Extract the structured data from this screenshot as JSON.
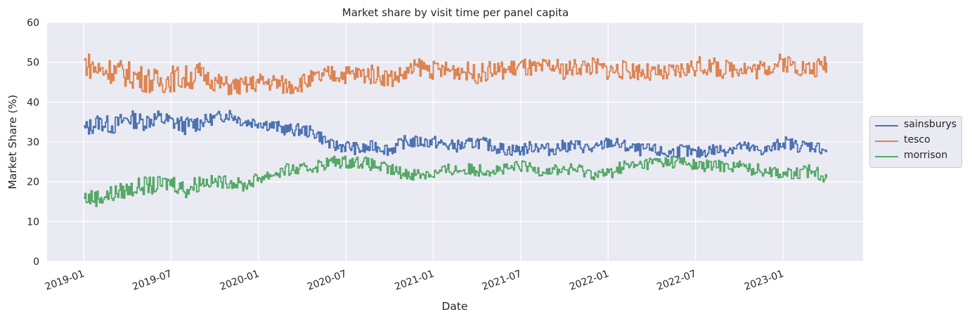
{
  "chart_data": {
    "type": "line",
    "title": "Market share by visit time per panel capita",
    "xlabel": "Date",
    "ylabel": "Market Share (%)",
    "ylim": [
      0,
      60
    ],
    "yticks": [
      0,
      10,
      20,
      30,
      40,
      50,
      60
    ],
    "xticks": [
      "2019-01",
      "2019-07",
      "2020-01",
      "2020-07",
      "2021-01",
      "2021-07",
      "2022-01",
      "2022-07",
      "2023-01"
    ],
    "xrange": [
      "2018-11",
      "2023-08"
    ],
    "grid": true,
    "legend_position": "right-outside",
    "x": [
      "2019-01",
      "2019-02",
      "2019-03",
      "2019-04",
      "2019-05",
      "2019-06",
      "2019-07",
      "2019-08",
      "2019-09",
      "2019-10",
      "2019-11",
      "2019-12",
      "2020-01",
      "2020-02",
      "2020-03",
      "2020-04",
      "2020-05",
      "2020-06",
      "2020-07",
      "2020-08",
      "2020-09",
      "2020-10",
      "2020-11",
      "2020-12",
      "2021-01",
      "2021-02",
      "2021-03",
      "2021-04",
      "2021-05",
      "2021-06",
      "2021-07",
      "2021-08",
      "2021-09",
      "2021-10",
      "2021-11",
      "2021-12",
      "2022-01",
      "2022-02",
      "2022-03",
      "2022-04",
      "2022-05",
      "2022-06",
      "2022-07",
      "2022-08",
      "2022-09",
      "2022-10",
      "2022-11",
      "2022-12",
      "2023-01",
      "2023-02",
      "2023-03",
      "2023-04"
    ],
    "series": [
      {
        "name": "sainsburys",
        "color": "#4c72b0",
        "values": [
          33,
          35,
          34,
          36,
          35,
          36,
          35,
          34,
          35,
          36,
          37,
          35,
          35,
          34,
          33,
          33,
          32,
          29,
          29,
          28,
          29,
          28,
          30,
          30,
          30,
          29,
          29,
          30,
          29,
          28,
          28,
          29,
          28,
          29,
          29,
          28,
          30,
          29,
          28,
          28,
          27,
          28,
          27,
          28,
          28,
          29,
          28,
          28,
          30,
          29,
          29,
          28
        ]
      },
      {
        "name": "tesco",
        "color": "#dd8452",
        "values": [
          50,
          48,
          48,
          47,
          46,
          45,
          46,
          46,
          47,
          45,
          44,
          44,
          45,
          45,
          44,
          45,
          46,
          47,
          47,
          47,
          47,
          46,
          47,
          49,
          48,
          48,
          48,
          47,
          48,
          48,
          49,
          48,
          49,
          48,
          49,
          49,
          48,
          48,
          48,
          47,
          47,
          48,
          49,
          49,
          48,
          49,
          48,
          49,
          50,
          49,
          48,
          50
        ]
      },
      {
        "name": "morrison",
        "color": "#55a868",
        "values": [
          16,
          16,
          17,
          18,
          19,
          19,
          20,
          18,
          20,
          20,
          20,
          19,
          21,
          22,
          23,
          23,
          24,
          25,
          25,
          25,
          24,
          23,
          22,
          22,
          22,
          23,
          23,
          23,
          23,
          23,
          24,
          23,
          23,
          23,
          23,
          22,
          22,
          24,
          24,
          25,
          25,
          25,
          24,
          24,
          24,
          24,
          23,
          23,
          22,
          22,
          23,
          21
        ]
      }
    ]
  },
  "legend": {
    "items": [
      {
        "label": "sainsburys",
        "color": "#4c72b0"
      },
      {
        "label": "tesco",
        "color": "#dd8452"
      },
      {
        "label": "morrison",
        "color": "#55a868"
      }
    ]
  }
}
